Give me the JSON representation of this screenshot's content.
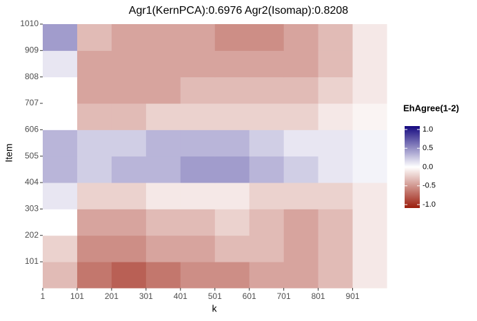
{
  "chart_data": {
    "type": "heatmap",
    "title": "Agr1(KernPCA):0.6976 Agr2(Isomap):0.8208",
    "x_label": "k",
    "y_label": "Item",
    "x_bins": [
      1,
      101,
      201,
      301,
      401,
      501,
      601,
      701,
      801,
      901,
      1000
    ],
    "y_bins": [
      1,
      101,
      202,
      303,
      404,
      505,
      606,
      707,
      808,
      909,
      1010
    ],
    "z": [
      [
        -0.3,
        -0.6,
        -0.7,
        -0.6,
        -0.5,
        -0.5,
        -0.4,
        -0.4,
        -0.3,
        -0.1
      ],
      [
        -0.2,
        -0.5,
        -0.5,
        -0.4,
        -0.4,
        -0.3,
        -0.3,
        -0.4,
        -0.3,
        -0.1
      ],
      [
        0,
        -0.4,
        -0.4,
        -0.3,
        -0.3,
        -0.2,
        -0.3,
        -0.4,
        -0.3,
        -0.1
      ],
      [
        0.1,
        -0.2,
        -0.2,
        -0.1,
        -0.1,
        -0.1,
        -0.2,
        -0.2,
        -0.2,
        -0.1
      ],
      [
        0.3,
        0.2,
        0.3,
        0.3,
        0.4,
        0.4,
        0.3,
        0.2,
        0.1,
        0.05
      ],
      [
        0.3,
        0.2,
        0.2,
        0.3,
        0.3,
        0.3,
        0.2,
        0.1,
        0.1,
        0.05
      ],
      [
        0,
        -0.3,
        -0.3,
        -0.2,
        -0.2,
        -0.2,
        -0.2,
        -0.2,
        -0.1,
        -0.05
      ],
      [
        0,
        -0.4,
        -0.4,
        -0.4,
        -0.3,
        -0.3,
        -0.3,
        -0.3,
        -0.2,
        -0.1
      ],
      [
        0.1,
        -0.4,
        -0.4,
        -0.4,
        -0.4,
        -0.4,
        -0.4,
        -0.4,
        -0.3,
        -0.1
      ],
      [
        0.4,
        -0.3,
        -0.4,
        -0.4,
        -0.4,
        -0.5,
        -0.5,
        -0.4,
        -0.3,
        -0.1
      ]
    ],
    "xlim": [
      1,
      1000
    ],
    "ylim": [
      1,
      1010
    ],
    "xticks": [
      1,
      101,
      201,
      301,
      401,
      501,
      601,
      701,
      801,
      901
    ],
    "yticks": [
      101,
      202,
      303,
      404,
      505,
      606,
      707,
      808,
      909,
      1010
    ],
    "colors": {
      "low": "#9b1c0c",
      "mid": "#ffffff",
      "high": "#14087f"
    },
    "legend_title": "EhAgree(1-2)",
    "legend_ticks": [
      {
        "value": -1,
        "label": "-1.0"
      },
      -0.5,
      {
        "value": 0,
        "label": "0.0"
      },
      0.5,
      {
        "value": 1,
        "label": "1.0"
      }
    ]
  }
}
